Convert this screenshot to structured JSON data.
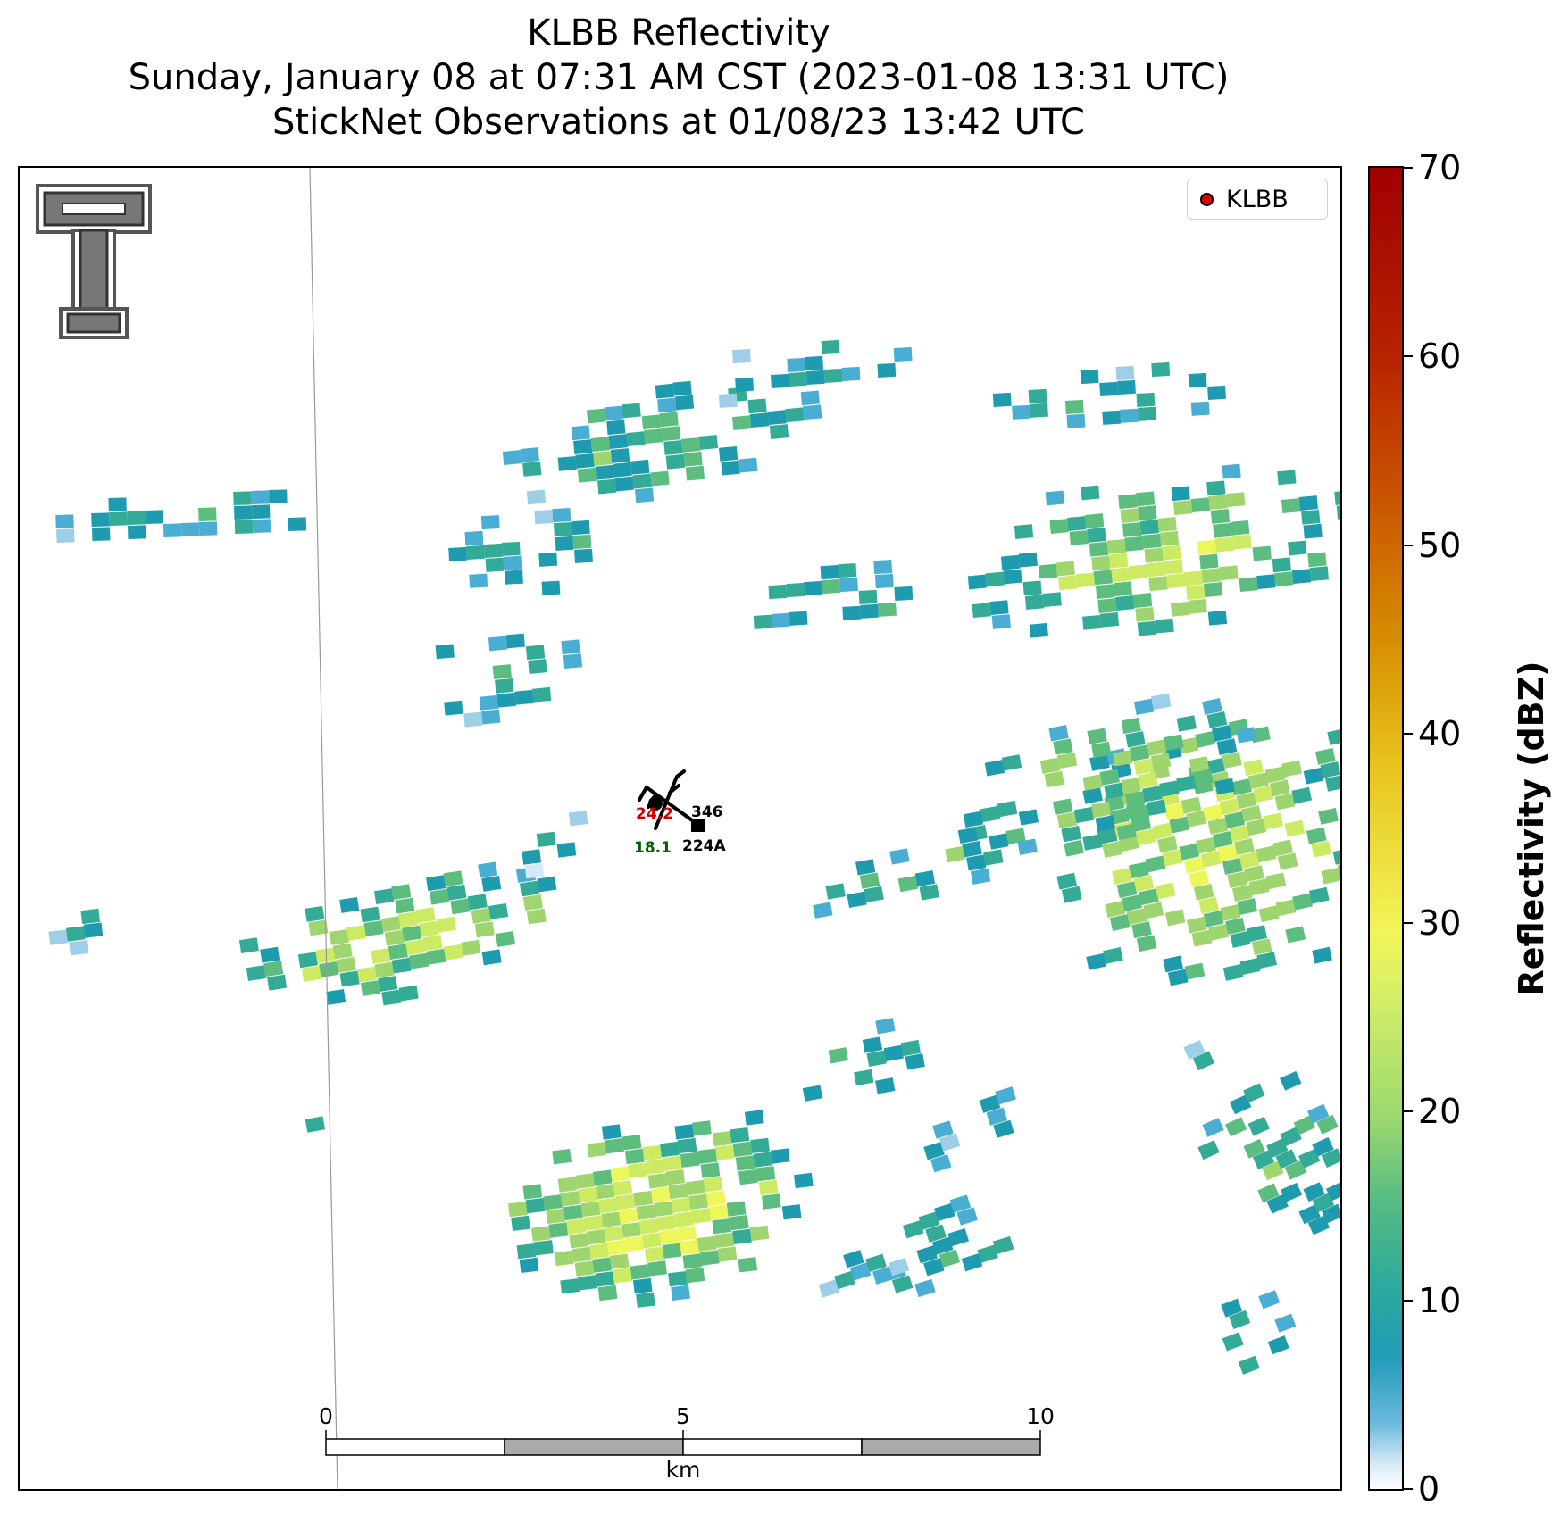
{
  "title": {
    "line1": "KLBB Reflectivity",
    "line2": "Sunday, January 08 at 07:31 AM CST (2023-01-08 13:31 UTC)",
    "line3": "StickNet Observations at 01/08/23 13:42 UTC"
  },
  "legend": {
    "label": "KLBB",
    "marker_color": "#e00000"
  },
  "logo": {
    "name": "Texas Tech double-T logo"
  },
  "scalebar": {
    "labels": [
      "0",
      "5",
      "10"
    ],
    "unit": "km"
  },
  "stations": [
    {
      "id": "346",
      "temp": "24.2",
      "dewpoint": "",
      "temp_color": "#cc0000"
    },
    {
      "id": "224A",
      "temp": "",
      "dewpoint": "18.1",
      "dewpoint_color": "#006400"
    }
  ],
  "colorbar": {
    "label": "Reflectivity (dBZ)",
    "min": 0,
    "max": 70,
    "ticks": [
      "0",
      "10",
      "20",
      "30",
      "40",
      "50",
      "60",
      "70"
    ]
  },
  "colors": {
    "very_light": "#d4e8f5",
    "light_blue": "#9dd0e8",
    "blue": "#4aaed4",
    "teal": "#1f9bb0",
    "green_teal": "#34ab96",
    "green": "#5cbd7f",
    "light_green": "#9fd56f",
    "yellow_green": "#cdea63",
    "yellow": "#eef75a"
  }
}
